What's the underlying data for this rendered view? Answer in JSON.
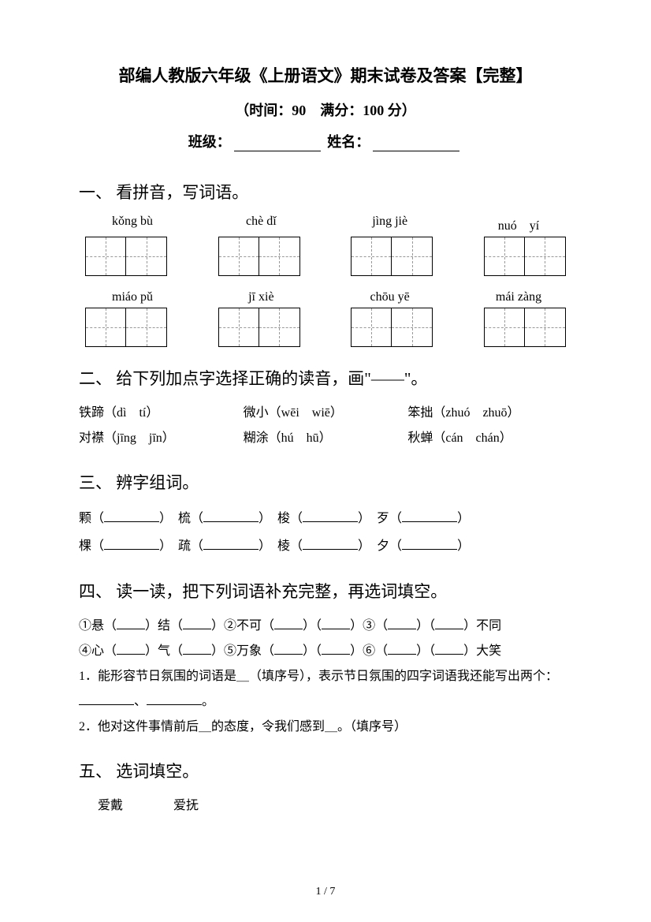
{
  "header": {
    "title": "部编人教版六年级《上册语文》期末试卷及答案【完整】",
    "subtitle": "（时间：90　满分：100 分）",
    "class_label": "班级：",
    "name_label": "姓名："
  },
  "q1": {
    "heading": "一、 看拼音，写词语。",
    "row1": [
      "kǒng bù",
      "chè dǐ",
      "jìng jiè",
      "nuó　yí"
    ],
    "row2": [
      "miáo pǔ",
      "jī xiè",
      "chōu yē",
      "mái zàng"
    ]
  },
  "q2": {
    "heading": "二、 给下列加点字选择正确的读音，画\"——\"。",
    "items": [
      [
        "铁蹄（dì　tí）",
        "微小（wēi　wiē）",
        "笨拙（zhuó　zhuō）"
      ],
      [
        "对襟（jīng　jīn）",
        "糊涂（hú　hū）",
        "秋蝉（cán　chán）"
      ]
    ]
  },
  "q3": {
    "heading": "三、 辨字组词。",
    "rows": [
      [
        "颗（",
        "）　梳（",
        "）　梭（",
        "）　歹（",
        "）"
      ],
      [
        "棵（",
        "）　疏（",
        "）　棱（",
        "）　夕（",
        "）"
      ]
    ]
  },
  "q4": {
    "heading": "四、 读一读，把下列词语补充完整，再选词填空。",
    "line1_a": "①悬（",
    "line1_b": "）结（",
    "line1_c": "）②不可（",
    "line1_d": "）（",
    "line1_e": "）③（",
    "line1_f": "）（",
    "line1_g": "）不同",
    "line2_a": "④心（",
    "line2_b": "）气（",
    "line2_c": "）⑤万象（",
    "line2_d": "）（",
    "line2_e": "）⑥（",
    "line2_f": "）（",
    "line2_g": "）大笑",
    "sub1": "1．能形容节日氛围的词语是＿（填序号），表示节日氛围的四字词语我还能写出两个：",
    "sub1_b": "、",
    "sub1_c": "。",
    "sub2": "2．他对这件事情前后＿的态度，令我们感到＿。（填序号）"
  },
  "q5": {
    "heading": "五、 选词填空。",
    "w1": "爱戴",
    "w2": "爱抚"
  },
  "footer": {
    "page": "1 / 7"
  }
}
